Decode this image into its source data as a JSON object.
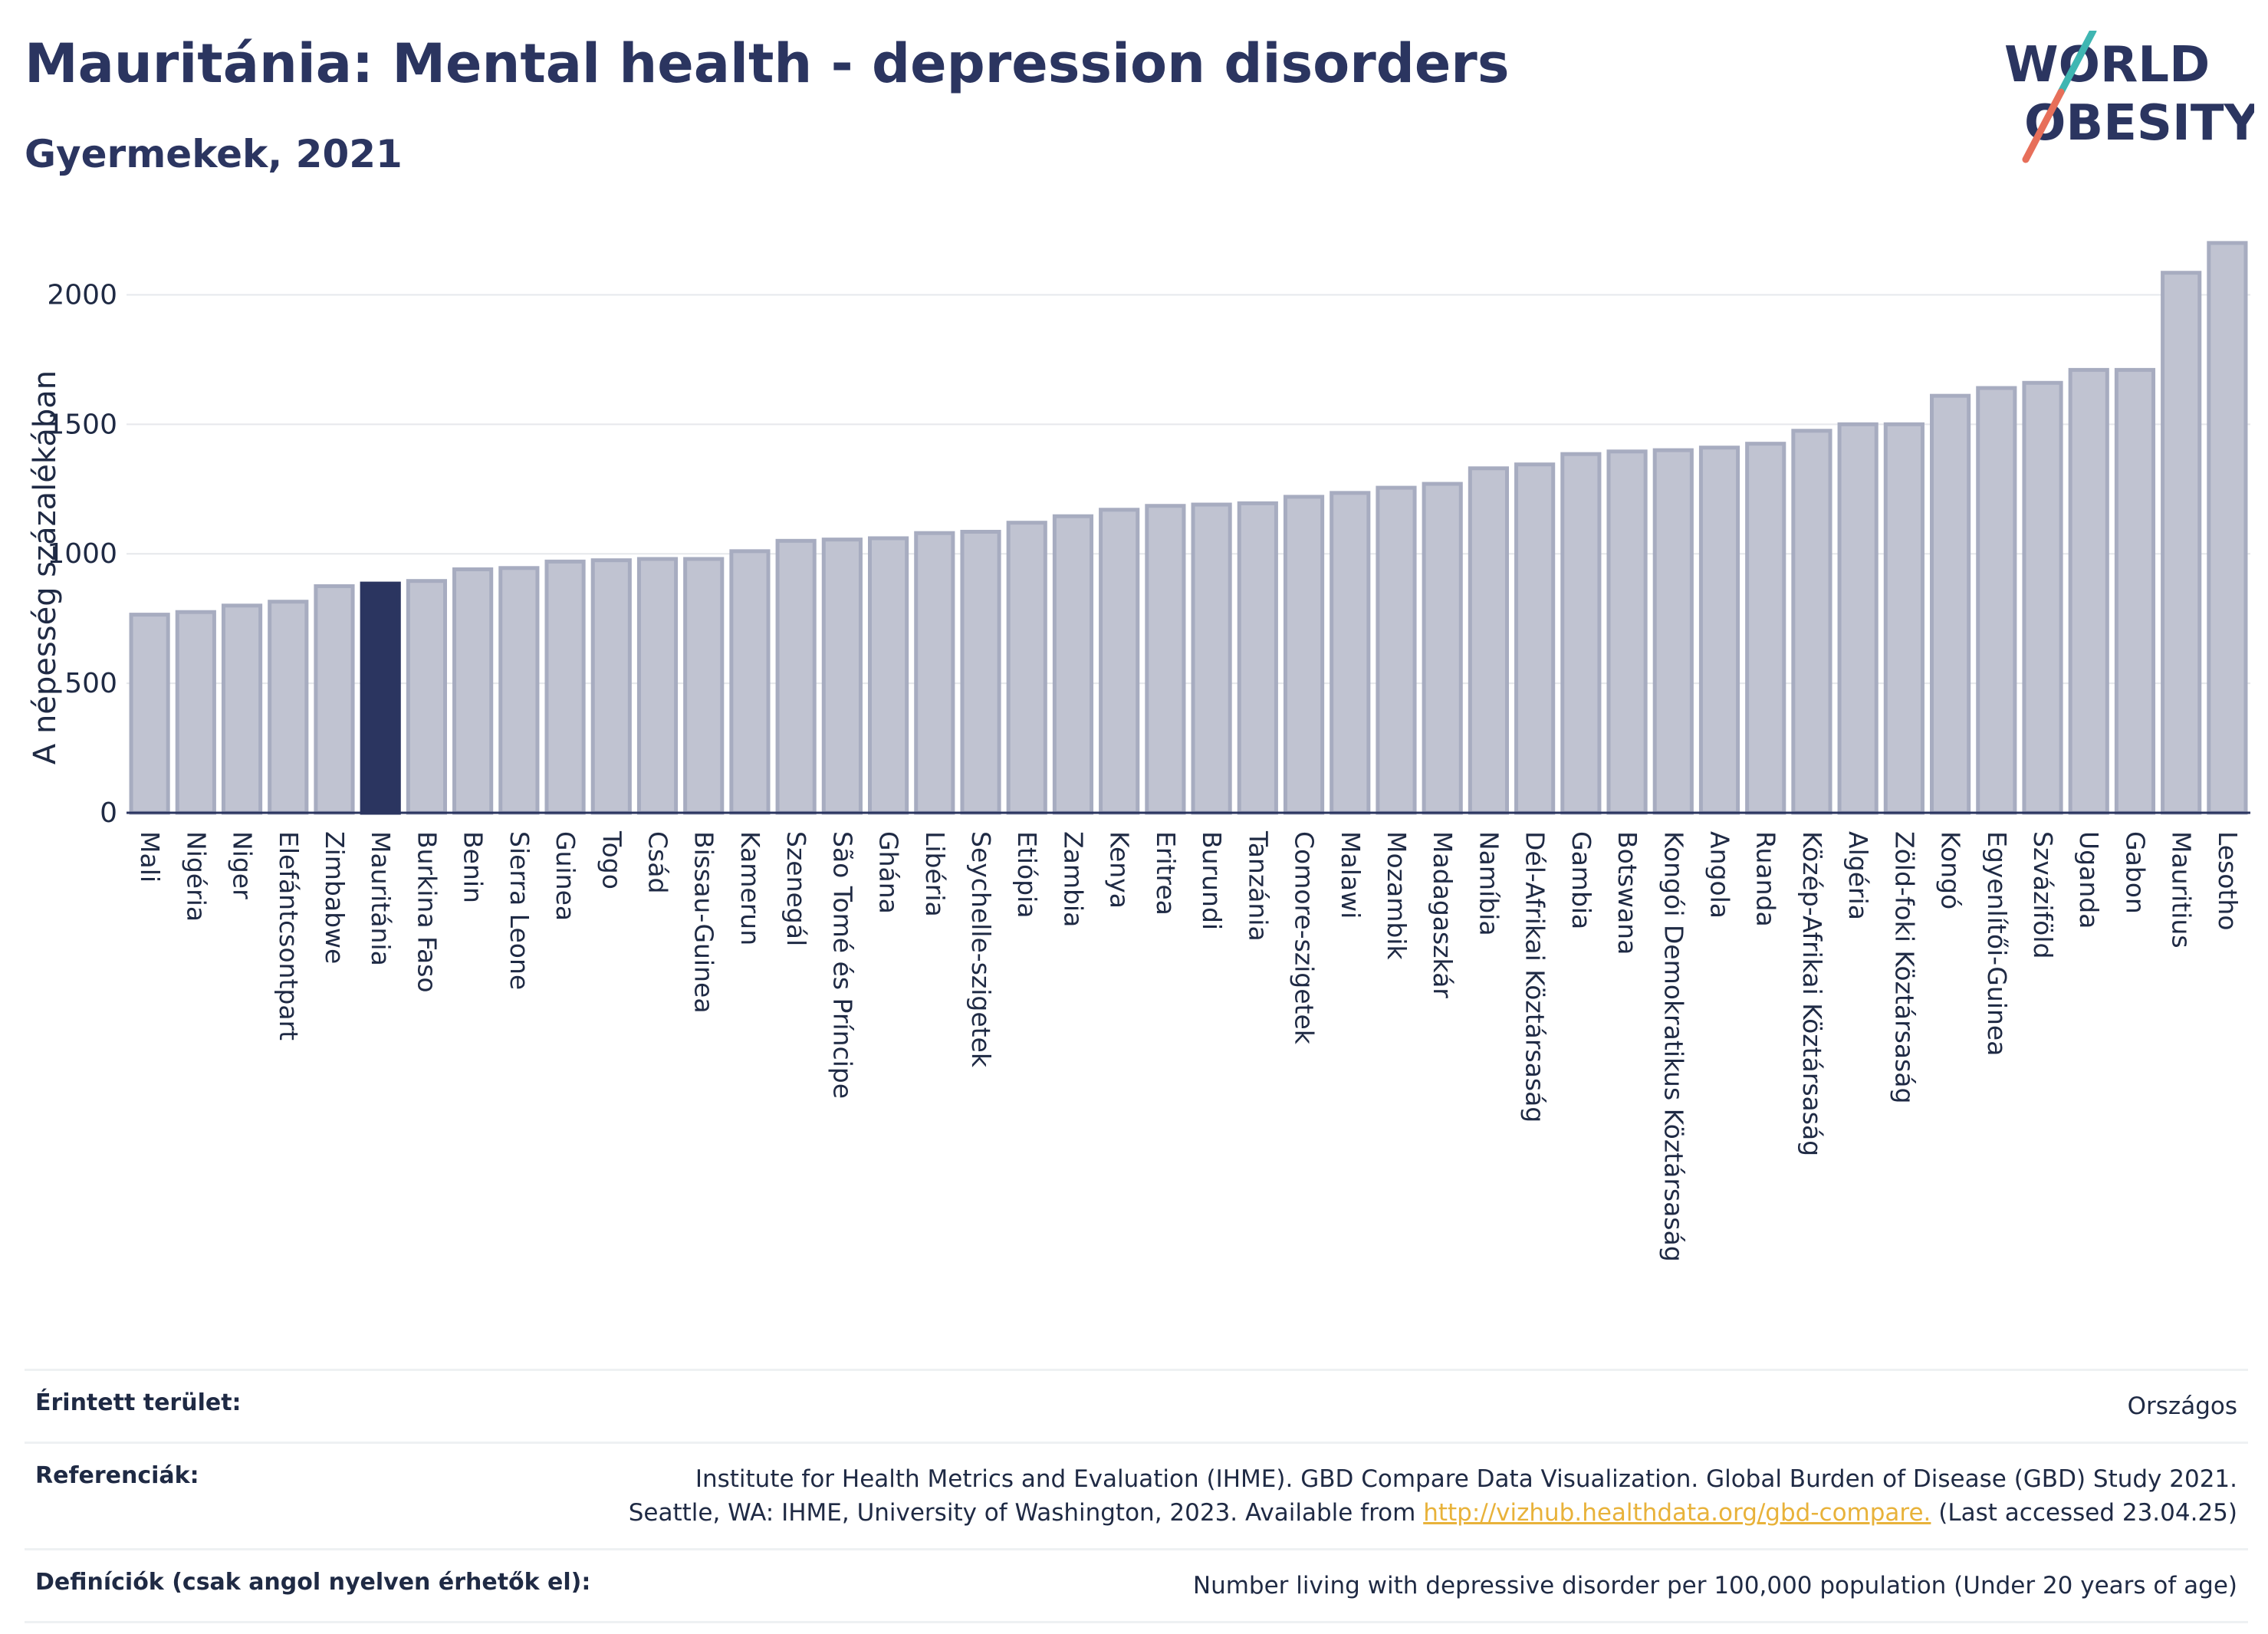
{
  "header": {
    "title": "Mauritánia: Mental health - depression disorders",
    "subtitle": "Gyermekek, 2021"
  },
  "logo": {
    "line1": "WORLD",
    "line2": "OBESITY"
  },
  "colors": {
    "highlight": "#2b3560",
    "bar": "#c0c3d1",
    "bar_stroke": "#a7acc0",
    "grid": "#e6e8ec",
    "title": "#2b3560",
    "link": "#e8b23a",
    "logo_slash_teal": "#3fb6b2",
    "logo_slash_coral": "#e76f5a"
  },
  "chart_data": {
    "type": "bar",
    "ylabel": "A népesség százalékában",
    "ylim": [
      0,
      2250
    ],
    "yticks": [
      0,
      500,
      1000,
      1500,
      2000
    ],
    "grid": true,
    "highlight": "Mauritánia",
    "categories": [
      "Mali",
      "Nigéria",
      "Niger",
      "Elefántcsontpart",
      "Zimbabwe",
      "Mauritánia",
      "Burkina Faso",
      "Benin",
      "Sierra Leone",
      "Guinea",
      "Togo",
      "Csád",
      "Bissau-Guinea",
      "Kamerun",
      "Szenegál",
      "São Tomé és Príncipe",
      "Ghána",
      "Libéria",
      "Seychelle-szigetek",
      "Etiópia",
      "Zambia",
      "Kenya",
      "Eritrea",
      "Burundi",
      "Tanzánia",
      "Comore-szigetek",
      "Malawi",
      "Mozambik",
      "Madagaszkár",
      "Namíbia",
      "Dél-Afrikai Köztársaság",
      "Gambia",
      "Botswana",
      "Kongói Demokratikus Köztársaság",
      "Angola",
      "Ruanda",
      "Közép-Afrikai Köztársaság",
      "Algéria",
      "Zöld-foki Köztársaság",
      "Kongó",
      "Egyenlítői-Guinea",
      "Szváziföld",
      "Uganda",
      "Gabon",
      "Mauritius",
      "Lesotho"
    ],
    "values": [
      765,
      775,
      800,
      815,
      875,
      885,
      895,
      940,
      945,
      970,
      975,
      980,
      980,
      1010,
      1050,
      1055,
      1060,
      1080,
      1085,
      1120,
      1145,
      1170,
      1185,
      1190,
      1195,
      1220,
      1235,
      1255,
      1270,
      1330,
      1345,
      1385,
      1395,
      1400,
      1410,
      1425,
      1475,
      1500,
      1500,
      1610,
      1640,
      1660,
      1710,
      1710,
      2085,
      2200
    ]
  },
  "footer": {
    "area_label": "Érintett terület:",
    "area_value": "Országos",
    "refs_label": "Referenciák:",
    "refs_line1": "Institute for Health Metrics and Evaluation (IHME). GBD Compare Data Visualization. Global Burden of Disease (GBD) Study 2021.",
    "refs_line2_pre": "Seattle, WA: IHME, University of Washington, 2023. Available from ",
    "refs_link": "http://vizhub.healthdata.org/gbd-compare.",
    "refs_line2_post": " (Last accessed 23.04.25)",
    "def_label": "Definíciók (csak angol nyelven érhetők el):",
    "def_value": "Number living with depressive disorder per 100,000 population (Under 20 years of age)"
  }
}
